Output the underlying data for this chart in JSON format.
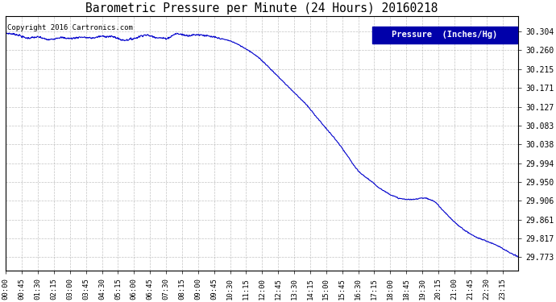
{
  "title": "Barometric Pressure per Minute (24 Hours) 20160218",
  "copyright_text": "Copyright 2016 Cartronics.com",
  "legend_label": "Pressure  (Inches/Hg)",
  "line_color": "#0000cc",
  "background_color": "#ffffff",
  "grid_color": "#aaaaaa",
  "yticks": [
    29.773,
    29.817,
    29.861,
    29.906,
    29.95,
    29.994,
    30.038,
    30.083,
    30.127,
    30.171,
    30.215,
    30.26,
    30.304
  ],
  "ytick_labels": [
    "29.773",
    "29.817",
    "29.861",
    "29.906",
    "29.950",
    "29.994",
    "30.038",
    "30.083",
    "30.127",
    "30.171",
    "30.215",
    "30.260",
    "30.304"
  ],
  "xtick_labels": [
    "00:00",
    "00:45",
    "01:30",
    "02:15",
    "03:00",
    "03:45",
    "04:30",
    "05:15",
    "06:00",
    "06:45",
    "07:30",
    "08:15",
    "09:00",
    "09:45",
    "10:30",
    "11:15",
    "12:00",
    "12:45",
    "13:30",
    "14:15",
    "15:00",
    "15:45",
    "16:30",
    "17:15",
    "18:00",
    "18:45",
    "19:30",
    "20:15",
    "21:00",
    "21:45",
    "22:30",
    "23:15"
  ],
  "ylim_min": 29.74,
  "ylim_max": 30.34,
  "num_points": 1440,
  "curve_keypoints_x": [
    0,
    30,
    60,
    90,
    120,
    150,
    180,
    210,
    240,
    270,
    300,
    330,
    360,
    390,
    420,
    450,
    480,
    510,
    540,
    570,
    600,
    630,
    660,
    690,
    720,
    750,
    780,
    810,
    840,
    870,
    900,
    930,
    960,
    990,
    1020,
    1050,
    1080,
    1110,
    1140,
    1170,
    1200,
    1230,
    1260,
    1290,
    1320,
    1350,
    1380,
    1410,
    1439
  ],
  "curve_keypoints_y": [
    30.3,
    30.297,
    30.289,
    30.291,
    30.285,
    30.29,
    30.288,
    30.291,
    30.289,
    30.293,
    30.292,
    30.284,
    30.288,
    30.296,
    30.291,
    30.288,
    30.299,
    30.295,
    30.297,
    30.293,
    30.288,
    30.282,
    30.27,
    30.255,
    30.235,
    30.21,
    30.185,
    30.16,
    30.135,
    30.105,
    30.075,
    30.045,
    30.01,
    29.975,
    29.955,
    29.935,
    29.92,
    29.91,
    29.908,
    29.912,
    29.905,
    29.88,
    29.855,
    29.835,
    29.82,
    29.81,
    29.8,
    29.785,
    29.773
  ]
}
